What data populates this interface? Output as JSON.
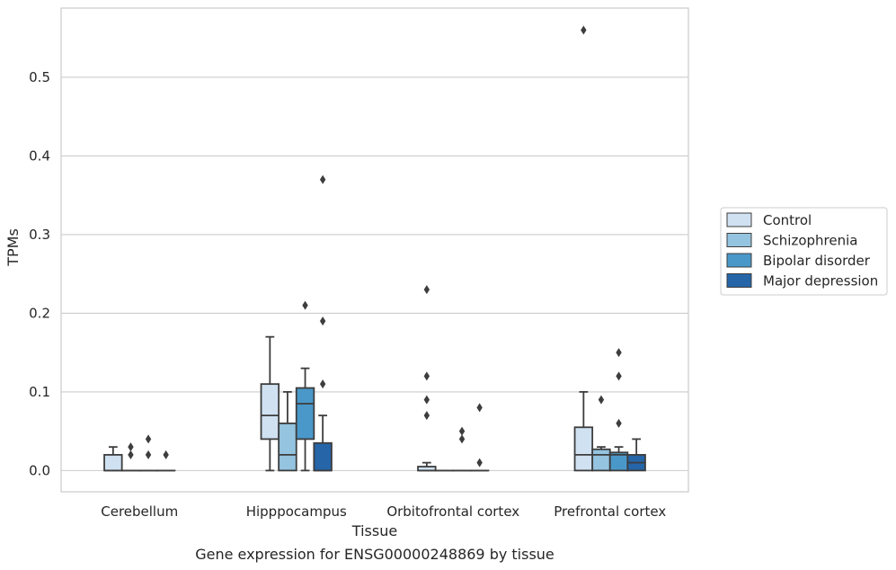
{
  "chart_data": {
    "type": "box",
    "xlabel": "Tissue",
    "ylabel": "TPMs",
    "caption": "Gene expression for ENSG00000248869 by tissue",
    "ylim": [
      -0.027,
      0.588
    ],
    "yticks": [
      "0.0",
      "0.1",
      "0.2",
      "0.3",
      "0.4",
      "0.5"
    ],
    "grid": "horizontal",
    "legend_position": "right",
    "categories": [
      "Cerebellum",
      "Hipppocampus",
      "Orbitofrontal cortex",
      "Prefrontal cortex"
    ],
    "series": [
      {
        "name": "Control",
        "color": "#d0e1f2",
        "boxes": [
          {
            "q1": 0.0,
            "median": 0.0,
            "q3": 0.02,
            "whislo": 0.0,
            "whishi": 0.03,
            "fliers": []
          },
          {
            "q1": 0.04,
            "median": 0.07,
            "q3": 0.11,
            "whislo": 0.0,
            "whishi": 0.17,
            "fliers": []
          },
          {
            "q1": 0.0,
            "median": 0.0,
            "q3": 0.005,
            "whislo": 0.0,
            "whishi": 0.01,
            "fliers": [
              0.07,
              0.09,
              0.12,
              0.23
            ]
          },
          {
            "q1": 0.0,
            "median": 0.02,
            "q3": 0.055,
            "whislo": 0.0,
            "whishi": 0.1,
            "fliers": [
              0.56
            ]
          }
        ]
      },
      {
        "name": "Schizophrenia",
        "color": "#94c4df",
        "boxes": [
          {
            "q1": 0.0,
            "median": 0.0,
            "q3": 0.0,
            "whislo": 0.0,
            "whishi": 0.0,
            "fliers": [
              0.02,
              0.03
            ]
          },
          {
            "q1": 0.0,
            "median": 0.02,
            "q3": 0.06,
            "whislo": 0.0,
            "whishi": 0.1,
            "fliers": []
          },
          {
            "q1": 0.0,
            "median": 0.0,
            "q3": 0.0,
            "whislo": 0.0,
            "whishi": 0.0,
            "fliers": []
          },
          {
            "q1": 0.0,
            "median": 0.02,
            "q3": 0.027,
            "whislo": 0.0,
            "whishi": 0.03,
            "fliers": [
              0.09
            ]
          }
        ]
      },
      {
        "name": "Bipolar disorder",
        "color": "#4a98c9",
        "boxes": [
          {
            "q1": 0.0,
            "median": 0.0,
            "q3": 0.0,
            "whislo": 0.0,
            "whishi": 0.0,
            "fliers": [
              0.02,
              0.04
            ]
          },
          {
            "q1": 0.04,
            "median": 0.085,
            "q3": 0.105,
            "whislo": 0.0,
            "whishi": 0.13,
            "fliers": [
              0.21
            ]
          },
          {
            "q1": 0.0,
            "median": 0.0,
            "q3": 0.0,
            "whislo": 0.0,
            "whishi": 0.0,
            "fliers": [
              0.04,
              0.05
            ]
          },
          {
            "q1": 0.0,
            "median": 0.02,
            "q3": 0.023,
            "whislo": 0.0,
            "whishi": 0.03,
            "fliers": [
              0.06,
              0.12,
              0.15
            ]
          }
        ]
      },
      {
        "name": "Major depression",
        "color": "#2565a8",
        "boxes": [
          {
            "q1": 0.0,
            "median": 0.0,
            "q3": 0.0,
            "whislo": 0.0,
            "whishi": 0.0,
            "fliers": [
              0.02
            ]
          },
          {
            "q1": 0.0,
            "median": 0.0,
            "q3": 0.035,
            "whislo": 0.0,
            "whishi": 0.07,
            "fliers": [
              0.11,
              0.19,
              0.37
            ]
          },
          {
            "q1": 0.0,
            "median": 0.0,
            "q3": 0.0,
            "whislo": 0.0,
            "whishi": 0.0,
            "fliers": [
              0.01,
              0.08
            ]
          },
          {
            "q1": 0.0,
            "median": 0.01,
            "q3": 0.02,
            "whislo": 0.0,
            "whishi": 0.04,
            "fliers": []
          }
        ]
      }
    ]
  }
}
